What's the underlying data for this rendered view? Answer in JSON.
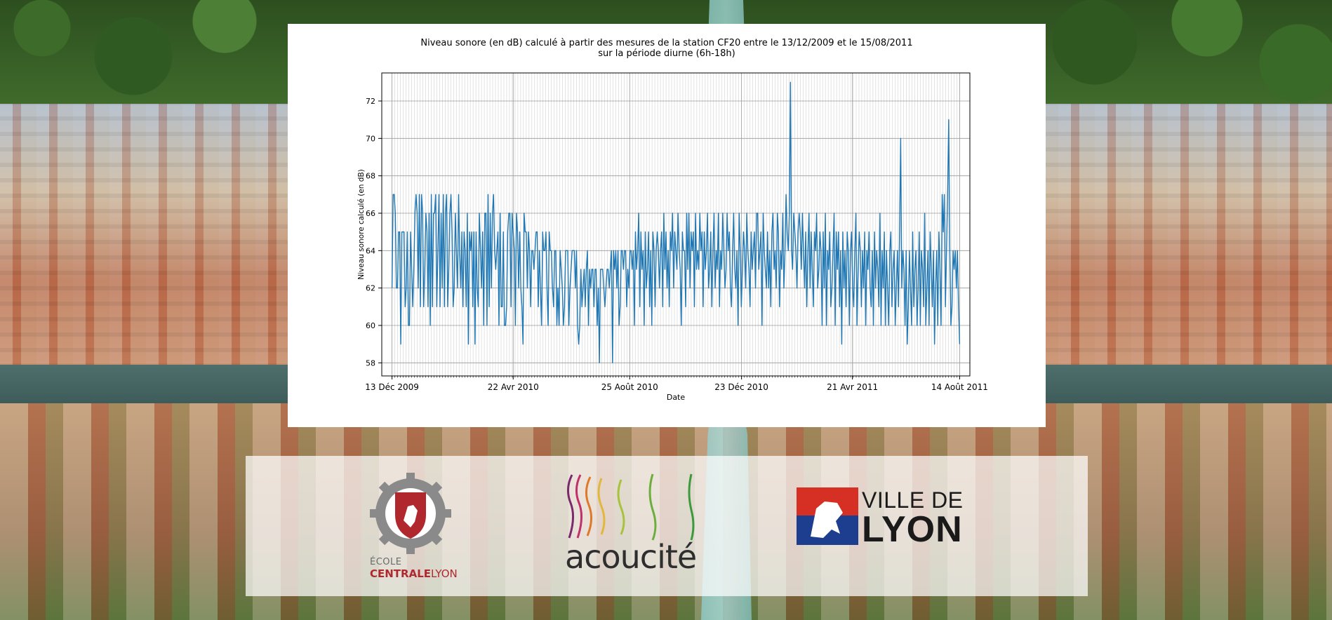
{
  "chart_data": {
    "type": "line",
    "title_line1": "Niveau sonore (en dB) calculé à partir des mesures de la station CF20 entre le 13/12/2009 et le 15/08/2011",
    "title_line2": "sur la période diurne (6h-18h)",
    "xlabel": "Date",
    "ylabel": "Niveau sonore calculé (en dB)",
    "x_ticks": [
      "13 Déc 2009",
      "22 Avr 2010",
      "25 Août 2010",
      "23 Déc 2010",
      "21 Avr 2011",
      "14 Août 2011"
    ],
    "y_ticks": [
      58,
      60,
      62,
      64,
      66,
      68,
      70,
      72
    ],
    "ylim": [
      57.3,
      73.5
    ],
    "x_day_range": [
      -11,
      620
    ],
    "x_tick_days": [
      0,
      130,
      255,
      375,
      494,
      609
    ],
    "grid": true,
    "series": [
      {
        "name": "Niveau sonore",
        "color": "#1f77b4",
        "values": [
          62,
          67,
          67,
          66,
          62,
          62,
          65,
          65,
          59,
          65,
          65,
          65,
          61,
          62,
          65,
          60,
          60,
          65,
          63,
          61,
          63,
          66,
          67,
          66,
          62,
          67,
          61,
          67,
          66,
          61,
          63,
          66,
          65,
          61,
          66,
          60,
          67,
          61,
          66,
          66,
          67,
          61,
          64,
          67,
          61,
          66,
          62,
          67,
          61,
          66,
          67,
          61,
          63,
          66,
          67,
          65,
          61,
          62,
          66,
          64,
          62,
          67,
          64,
          62,
          65,
          61,
          65,
          64,
          61,
          66,
          59,
          65,
          64,
          65,
          61,
          65,
          59,
          65,
          62,
          61,
          66,
          64,
          62,
          65,
          60,
          66,
          66,
          60,
          67,
          61,
          66,
          62,
          66,
          67,
          64,
          63,
          64,
          65,
          60,
          66,
          61,
          61,
          65,
          60,
          60,
          61,
          65,
          66,
          66,
          61,
          66,
          65,
          64,
          60,
          66,
          65,
          62,
          65,
          62,
          61,
          59,
          66,
          65,
          65,
          62,
          65,
          64,
          61,
          64,
          64,
          63,
          64,
          65,
          65,
          61,
          64,
          62,
          60,
          65,
          64,
          64,
          65,
          62,
          60,
          65,
          64,
          64,
          62,
          61,
          64,
          64,
          60,
          62,
          60,
          64,
          63,
          62,
          60,
          61,
          64,
          64,
          64,
          60,
          62,
          63,
          64,
          64,
          64,
          62,
          64,
          60,
          59,
          60,
          63,
          61,
          62,
          63,
          61,
          63,
          64,
          60,
          63,
          62,
          63,
          63,
          61,
          63,
          63,
          60,
          62,
          58,
          63,
          63,
          63,
          62,
          61,
          62,
          63,
          63,
          62,
          63,
          64,
          58,
          64,
          63,
          64,
          62,
          64,
          60,
          61,
          64,
          64,
          63,
          64,
          64,
          61,
          63,
          62,
          64,
          64,
          63,
          64,
          60,
          65,
          63,
          64,
          66,
          61,
          65,
          63,
          64,
          60,
          65,
          62,
          63,
          65,
          61,
          64,
          60,
          65,
          64,
          61,
          64,
          65,
          64,
          62,
          64,
          65,
          61,
          66,
          63,
          65,
          62,
          64,
          61,
          65,
          64,
          66,
          62,
          65,
          64,
          63,
          66,
          64,
          63,
          60,
          65,
          64,
          64,
          61,
          66,
          63,
          66,
          62,
          65,
          64,
          65,
          61,
          66,
          63,
          64,
          63,
          66,
          64,
          65,
          61,
          65,
          63,
          64,
          66,
          62,
          63,
          65,
          61,
          64,
          66,
          62,
          64,
          63,
          66,
          61,
          64,
          63,
          66,
          64,
          62,
          63,
          66,
          64,
          65,
          62,
          61,
          64,
          66,
          63,
          62,
          64,
          60,
          66,
          64,
          61,
          63,
          65,
          64,
          62,
          66,
          64,
          63,
          61,
          65,
          63,
          64,
          65,
          62,
          66,
          66,
          63,
          64,
          65,
          60,
          66,
          64,
          63,
          62,
          65,
          62,
          64,
          61,
          65,
          66,
          63,
          64,
          62,
          66,
          65,
          61,
          64,
          63,
          66,
          62,
          64,
          67,
          65,
          64,
          66,
          73,
          64,
          63,
          66,
          65,
          64,
          62,
          65,
          66,
          65,
          63,
          66,
          64,
          62,
          65,
          61,
          64,
          66,
          62,
          65,
          63,
          61,
          65,
          64,
          66,
          62,
          63,
          65,
          64,
          60,
          65,
          62,
          66,
          60,
          64,
          63,
          65,
          61,
          62,
          64,
          66,
          60,
          65,
          63,
          65,
          61,
          64,
          59,
          65,
          62,
          64,
          61,
          65,
          64,
          60,
          64,
          65,
          62,
          61,
          64,
          66,
          60,
          63,
          65,
          64,
          61,
          64,
          62,
          65,
          60,
          64,
          63,
          65,
          62,
          61,
          64,
          60,
          65,
          62,
          64,
          63,
          61,
          66,
          60,
          64,
          62,
          65,
          60,
          64,
          62,
          60,
          64,
          65,
          61,
          63,
          64,
          60,
          62,
          64,
          61,
          65,
          70,
          62,
          64,
          63,
          60,
          64,
          59,
          61,
          64,
          62,
          60,
          65,
          61,
          63,
          64,
          60,
          62,
          65,
          60,
          64,
          63,
          61,
          66,
          60,
          62,
          64,
          60,
          65,
          63,
          61,
          64,
          59,
          62,
          64,
          60,
          65,
          63,
          60,
          67,
          65,
          67,
          61,
          64,
          67,
          71,
          64,
          60,
          61,
          64,
          63,
          64,
          62,
          64,
          61,
          59
        ]
      }
    ]
  },
  "logos": {
    "centrale_line1": "ÉCOLE",
    "centrale_line2a": "CENTRALE",
    "centrale_line2b": "LYON",
    "acoucite": "acoucité",
    "lyon_line1": "VILLE DE",
    "lyon_line2": "LYON"
  }
}
